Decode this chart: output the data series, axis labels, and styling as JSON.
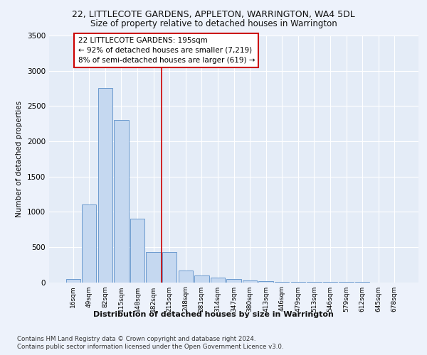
{
  "title_line1": "22, LITTLECOTE GARDENS, APPLETON, WARRINGTON, WA4 5DL",
  "title_line2": "Size of property relative to detached houses in Warrington",
  "xlabel": "Distribution of detached houses by size in Warrington",
  "ylabel": "Number of detached properties",
  "categories": [
    "16sqm",
    "49sqm",
    "82sqm",
    "115sqm",
    "148sqm",
    "182sqm",
    "215sqm",
    "248sqm",
    "281sqm",
    "314sqm",
    "347sqm",
    "380sqm",
    "413sqm",
    "446sqm",
    "479sqm",
    "513sqm",
    "546sqm",
    "579sqm",
    "612sqm",
    "645sqm",
    "678sqm"
  ],
  "values": [
    50,
    1100,
    2750,
    2300,
    900,
    430,
    430,
    170,
    100,
    70,
    50,
    30,
    20,
    10,
    5,
    3,
    2,
    1,
    1,
    0,
    0
  ],
  "bar_color": "#c5d8f0",
  "bar_edgecolor": "#5b8fc9",
  "vline_x": 5.5,
  "vline_color": "#cc0000",
  "annotation_text": "22 LITTLECOTE GARDENS: 195sqm\n← 92% of detached houses are smaller (7,219)\n8% of semi-detached houses are larger (619) →",
  "annotation_box_color": "#cc0000",
  "ylim": [
    0,
    3500
  ],
  "yticks": [
    0,
    500,
    1000,
    1500,
    2000,
    2500,
    3000,
    3500
  ],
  "footer_line1": "Contains HM Land Registry data © Crown copyright and database right 2024.",
  "footer_line2": "Contains public sector information licensed under the Open Government Licence v3.0.",
  "bg_color": "#edf2fb",
  "plot_bg_color": "#e4ecf7"
}
